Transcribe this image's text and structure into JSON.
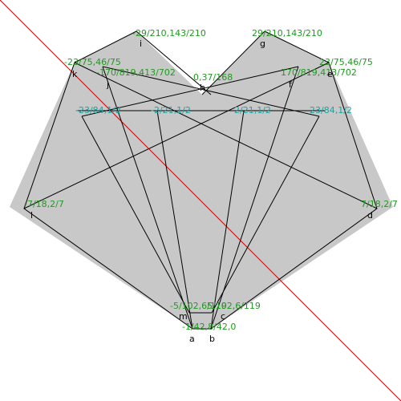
{
  "colors": {
    "background": "#ffffff",
    "fill": "#c8c8c8",
    "edge": "#000000",
    "diagonal": "#cc0000",
    "coord_green": "#1f9a1f",
    "coord_teal": "#1aa3a3"
  },
  "vertices": {
    "a": {
      "name": "a",
      "coord": "-1/42,8/42,0"
    },
    "b": {
      "name": "b",
      "coord": ""
    },
    "c": {
      "name": "c",
      "coord": "5/102,6/119"
    },
    "d": {
      "name": "d",
      "coord": "7/18,2/7"
    },
    "e": {
      "name": "e",
      "coord": "23/75,46/75"
    },
    "f": {
      "name": "f",
      "coord": "170/819,413/702"
    },
    "g": {
      "name": "g",
      "coord": "29/210,143/210"
    },
    "h": {
      "name": "h",
      "coord": "0,37/168"
    },
    "i": {
      "name": "i",
      "coord": "-29/210,143/210"
    },
    "j": {
      "name": "j",
      "coord": "-170/819,413/702"
    },
    "k": {
      "name": "k",
      "coord": "-23/75,46/75"
    },
    "l": {
      "name": "l",
      "coord": "-7/18,2/7"
    },
    "m": {
      "name": "m",
      "coord": "-5/102,6/119"
    }
  },
  "crossings": [
    {
      "coord": "-23/84,1/2"
    },
    {
      "coord": "-2/21,1/2"
    },
    {
      "coord": "2/21,1/2"
    },
    {
      "coord": "23/84,1/2"
    }
  ]
}
